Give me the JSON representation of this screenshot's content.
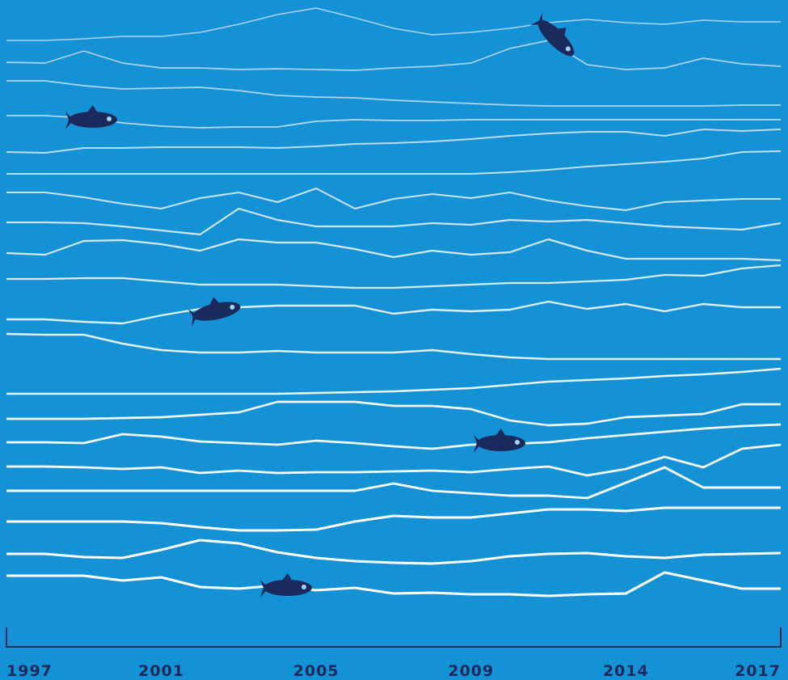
{
  "chart_data": {
    "type": "line",
    "categories": [
      "1997",
      null,
      null,
      null,
      "2001",
      null,
      null,
      null,
      "2005",
      null,
      null,
      null,
      "2009",
      null,
      null,
      null,
      "2014",
      null,
      null,
      null,
      "2017"
    ],
    "ylim": [
      800,
      0
    ],
    "series": [
      {
        "color": "#a9d2f2",
        "values": [
          50,
          50,
          48,
          45,
          45,
          40,
          30,
          18,
          10,
          22,
          35,
          43,
          40,
          35,
          28,
          24,
          28,
          30,
          25,
          27,
          27
        ]
      },
      {
        "color": "#a9d2f2",
        "values": [
          77,
          78,
          63,
          78,
          84,
          84,
          86,
          85,
          86,
          87,
          84,
          82,
          78,
          60,
          50,
          80,
          86,
          84,
          72,
          79,
          82
        ]
      },
      {
        "color": "#add4f2",
        "values": [
          100,
          100,
          106,
          110,
          109,
          108,
          112,
          118,
          120,
          121,
          124,
          126,
          128,
          130,
          131,
          131,
          131,
          131,
          131,
          130,
          130
        ]
      },
      {
        "color": "#b3d8f4",
        "values": [
          143,
          143,
          146,
          152,
          156,
          158,
          157,
          157,
          150,
          148,
          149,
          149,
          148,
          148,
          148,
          148,
          148,
          148,
          148,
          148,
          148
        ]
      },
      {
        "color": "#b8dbf4",
        "values": [
          188,
          189,
          183,
          183,
          182,
          182,
          182,
          183,
          181,
          178,
          177,
          175,
          172,
          168,
          165,
          163,
          163,
          168,
          160,
          162,
          160
        ]
      },
      {
        "color": "#bfdff6",
        "values": [
          215,
          215,
          215,
          215,
          215,
          215,
          215,
          215,
          215,
          215,
          215,
          215,
          215,
          213,
          210,
          206,
          203,
          200,
          196,
          188,
          187
        ]
      },
      {
        "color": "#c4e2f6",
        "values": [
          238,
          238,
          244,
          252,
          258,
          245,
          238,
          250,
          233,
          258,
          246,
          240,
          245,
          238,
          248,
          255,
          260,
          250,
          248,
          246,
          246
        ]
      },
      {
        "color": "#c9e5f7",
        "values": [
          275,
          275,
          276,
          280,
          285,
          290,
          258,
          272,
          280,
          280,
          280,
          276,
          278,
          272,
          274,
          272,
          276,
          280,
          282,
          284,
          276
        ]
      },
      {
        "color": "#cee8f8",
        "values": [
          313,
          315,
          298,
          297,
          302,
          310,
          296,
          300,
          300,
          308,
          318,
          310,
          315,
          312,
          296,
          310,
          320,
          320,
          320,
          320,
          322
        ]
      },
      {
        "color": "#d4ebf9",
        "values": [
          345,
          345,
          344,
          344,
          348,
          352,
          352,
          352,
          354,
          356,
          356,
          354,
          352,
          350,
          350,
          348,
          346,
          340,
          341,
          332,
          328
        ]
      },
      {
        "color": "#dbeffa",
        "values": [
          395,
          395,
          398,
          400,
          390,
          382,
          380,
          378,
          378,
          378,
          388,
          383,
          385,
          383,
          373,
          382,
          376,
          385,
          376,
          380,
          380
        ]
      },
      {
        "color": "#e0f1fb",
        "values": [
          413,
          414,
          414,
          425,
          433,
          436,
          436,
          434,
          436,
          436,
          436,
          433,
          438,
          442,
          444,
          444,
          444,
          444,
          444,
          444,
          444
        ]
      },
      {
        "color": "#e8f5fc",
        "values": [
          487,
          487,
          487,
          487,
          487,
          487,
          487,
          487,
          486,
          485,
          484,
          482,
          480,
          476,
          472,
          470,
          468,
          465,
          463,
          460,
          456
        ]
      },
      {
        "color": "#edf7fd",
        "values": [
          518,
          518,
          518,
          517,
          516,
          513,
          510,
          497,
          497,
          497,
          502,
          502,
          506,
          520,
          526,
          524,
          516,
          514,
          512,
          500,
          500
        ]
      },
      {
        "color": "#f1f9fe",
        "values": [
          547,
          547,
          548,
          537,
          540,
          546,
          548,
          550,
          545,
          548,
          552,
          555,
          550,
          549,
          547,
          542,
          538,
          534,
          530,
          527,
          525
        ]
      },
      {
        "color": "#f6fbfe",
        "values": [
          577,
          577,
          578,
          580,
          578,
          585,
          582,
          585,
          584,
          584,
          583,
          582,
          584,
          580,
          577,
          588,
          580,
          565,
          578,
          555,
          550
        ]
      },
      {
        "color": "#fafdff",
        "values": [
          607,
          607,
          607,
          607,
          607,
          607,
          607,
          607,
          607,
          607,
          598,
          607,
          610,
          613,
          613,
          616,
          597,
          578,
          603,
          603,
          603
        ]
      },
      {
        "color": "#ffffff",
        "values": [
          645,
          645,
          645,
          645,
          647,
          652,
          656,
          656,
          655,
          645,
          638,
          640,
          640,
          635,
          630,
          630,
          632,
          628,
          628,
          628,
          628
        ]
      },
      {
        "color": "#ffffff",
        "values": [
          685,
          685,
          689,
          690,
          680,
          668,
          672,
          683,
          690,
          694,
          696,
          697,
          694,
          688,
          685,
          684,
          688,
          690,
          686,
          685,
          684
        ]
      },
      {
        "color": "#ffffff",
        "values": [
          712,
          712,
          712,
          718,
          714,
          726,
          728,
          724,
          730,
          727,
          734,
          733,
          735,
          735,
          737,
          735,
          734,
          708,
          718,
          728,
          728
        ]
      }
    ]
  }
}
